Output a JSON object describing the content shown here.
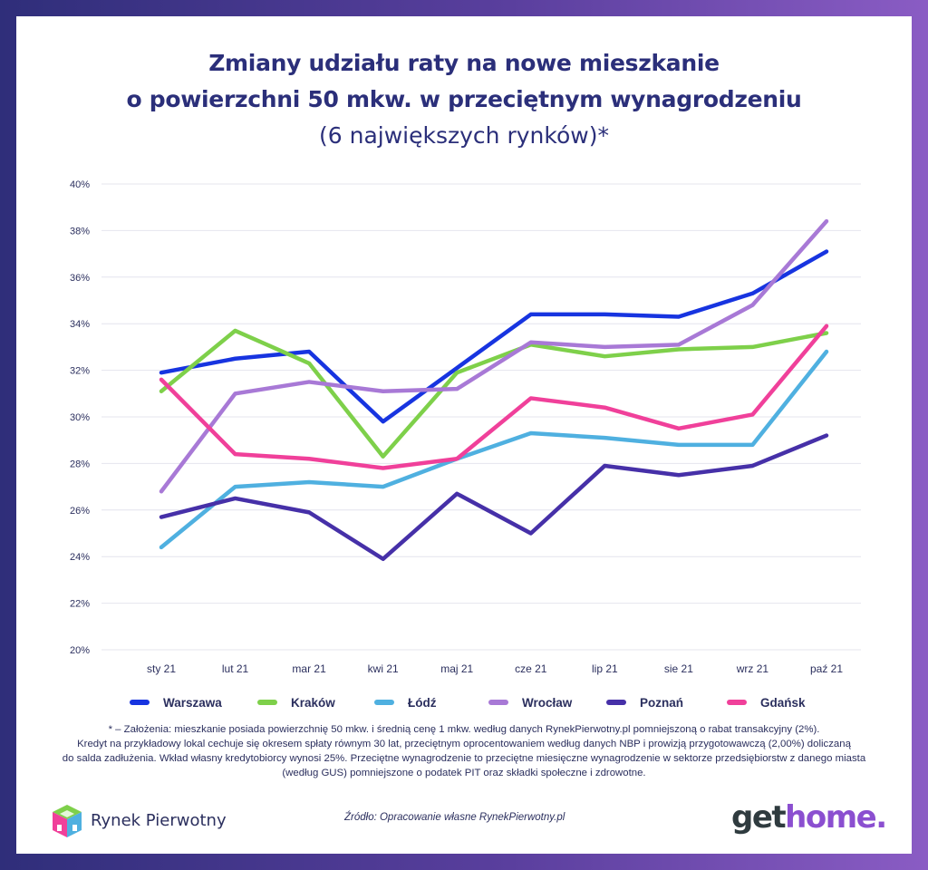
{
  "title_line1": "Zmiany udziału raty na nowe mieszkanie",
  "title_line2": "o powierzchni 50 mkw. w przeciętnym wynagrodzeniu",
  "subtitle": "(6 największych rynków)*",
  "chart_data": {
    "type": "line",
    "categories": [
      "sty 21",
      "lut 21",
      "mar 21",
      "kwi 21",
      "maj 21",
      "cze 21",
      "lip 21",
      "sie 21",
      "wrz 21",
      "paź 21"
    ],
    "y_ticks": [
      "20%",
      "22%",
      "24%",
      "26%",
      "28%",
      "30%",
      "32%",
      "34%",
      "36%",
      "38%",
      "40%"
    ],
    "ylim": [
      20,
      40
    ],
    "y_unit": "%",
    "grid": "horizontal",
    "legend_position": "bottom",
    "series": [
      {
        "name": "Warszawa",
        "color": "#1734e0",
        "values": [
          31.9,
          32.5,
          32.8,
          29.8,
          32.1,
          34.4,
          34.4,
          34.3,
          35.3,
          37.1
        ]
      },
      {
        "name": "Kraków",
        "color": "#7ed04a",
        "values": [
          31.1,
          33.7,
          32.3,
          28.3,
          31.9,
          33.1,
          32.6,
          32.9,
          33.0,
          33.6
        ]
      },
      {
        "name": "Łódź",
        "color": "#4fb0e0",
        "values": [
          24.4,
          27.0,
          27.2,
          27.0,
          28.2,
          29.3,
          29.1,
          28.8,
          28.8,
          32.8
        ]
      },
      {
        "name": "Wrocław",
        "color": "#a879d6",
        "values": [
          26.8,
          31.0,
          31.5,
          31.1,
          31.2,
          33.2,
          33.0,
          33.1,
          34.8,
          38.4
        ]
      },
      {
        "name": "Poznań",
        "color": "#4630a8",
        "values": [
          25.7,
          26.5,
          25.9,
          23.9,
          26.7,
          25.0,
          27.9,
          27.5,
          27.9,
          29.2
        ]
      },
      {
        "name": "Gdańsk",
        "color": "#f0409a",
        "values": [
          31.6,
          28.4,
          28.2,
          27.8,
          28.2,
          30.8,
          30.4,
          29.5,
          30.1,
          33.9
        ]
      }
    ]
  },
  "footnote": [
    "* – Założenia: mieszkanie posiada powierzchnię 50 mkw. i średnią cenę 1 mkw. według danych RynekPierwotny.pl pomniejszoną o rabat transakcyjny (2%).",
    "Kredyt na przykładowy lokal cechuje się okresem spłaty równym 30 lat, przeciętnym oprocentowaniem według danych NBP i prowizją przygotowawczą (2,00%) doliczaną",
    "do salda zadłużenia. Wkład własny kredytobiorcy wynosi 25%. Przeciętne wynagrodzenie to przeciętne miesięczne wynagrodzenie w sektorze przedsiębiorstw z danego miasta",
    "(według GUS) pomniejszone o podatek PIT oraz składki społeczne i zdrowotne."
  ],
  "source": "Źródło: Opracowanie własne RynekPierwotny.pl",
  "brand_left": "Rynek Pierwotny",
  "brand_right_a": "get",
  "brand_right_b": "home."
}
